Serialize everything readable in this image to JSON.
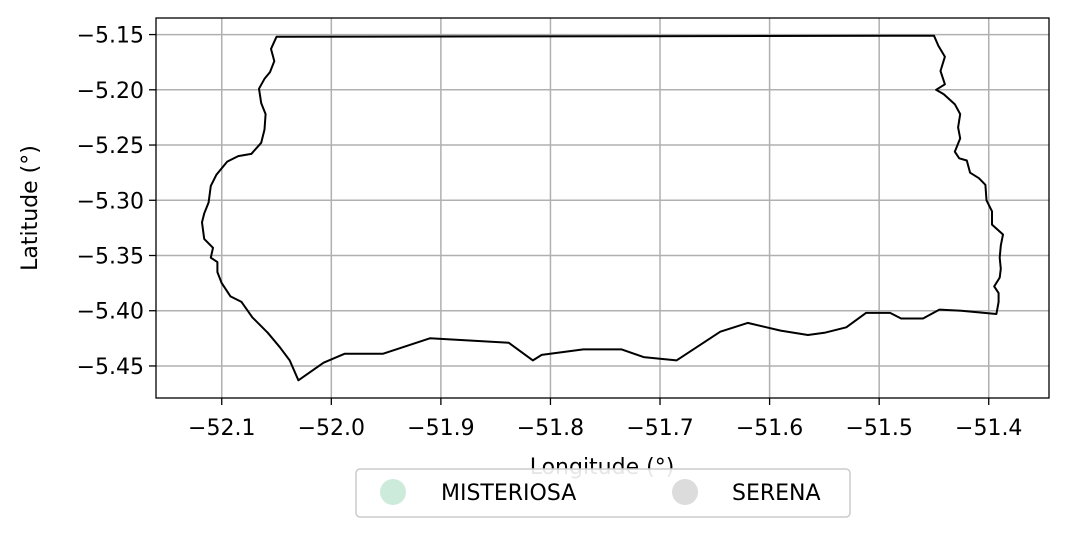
{
  "chart_data": {
    "type": "map",
    "xlabel": "Longitude (°)",
    "ylabel": "Latitude (°)",
    "xlim": [
      -52.16,
      -51.345
    ],
    "ylim": [
      -5.479,
      -5.135
    ],
    "grid": true,
    "x_ticks": [
      -52.1,
      -52.0,
      -51.9,
      -51.8,
      -51.7,
      -51.6,
      -51.5,
      -51.4
    ],
    "y_ticks": [
      -5.45,
      -5.4,
      -5.35,
      -5.3,
      -5.25,
      -5.2,
      -5.15
    ],
    "x_tick_labels": [
      "−52.1",
      "−52.0",
      "−51.9",
      "−51.8",
      "−51.7",
      "−51.6",
      "−51.5",
      "−51.4"
    ],
    "y_tick_labels": [
      "−5.45",
      "−5.40",
      "−5.35",
      "−5.30",
      "−5.25",
      "−5.20",
      "−5.15"
    ],
    "legend": {
      "placement": "bottom-center",
      "entries": [
        {
          "label": "MISTERIOSA",
          "color": "#cdebdb"
        },
        {
          "label": "SERENA",
          "color": "#dcdcdc"
        }
      ]
    },
    "boundary": [
      [
        -52.05,
        -5.152
      ],
      [
        -51.45,
        -5.151
      ],
      [
        -51.446,
        -5.16
      ],
      [
        -51.44,
        -5.17
      ],
      [
        -51.444,
        -5.183
      ],
      [
        -51.44,
        -5.195
      ],
      [
        -51.448,
        -5.2
      ],
      [
        -51.441,
        -5.204
      ],
      [
        -51.431,
        -5.213
      ],
      [
        -51.426,
        -5.222
      ],
      [
        -51.428,
        -5.234
      ],
      [
        -51.426,
        -5.244
      ],
      [
        -51.431,
        -5.256
      ],
      [
        -51.427,
        -5.262
      ],
      [
        -51.42,
        -5.264
      ],
      [
        -51.417,
        -5.275
      ],
      [
        -51.409,
        -5.28
      ],
      [
        -51.403,
        -5.286
      ],
      [
        -51.402,
        -5.3
      ],
      [
        -51.397,
        -5.31
      ],
      [
        -51.397,
        -5.322
      ],
      [
        -51.387,
        -5.331
      ],
      [
        -51.389,
        -5.341
      ],
      [
        -51.39,
        -5.352
      ],
      [
        -51.389,
        -5.362
      ],
      [
        -51.39,
        -5.37
      ],
      [
        -51.395,
        -5.378
      ],
      [
        -51.391,
        -5.384
      ],
      [
        -51.391,
        -5.392
      ],
      [
        -51.393,
        -5.403
      ],
      [
        -51.425,
        -5.4
      ],
      [
        -51.445,
        -5.399
      ],
      [
        -51.46,
        -5.407
      ],
      [
        -51.48,
        -5.407
      ],
      [
        -51.49,
        -5.402
      ],
      [
        -51.512,
        -5.402
      ],
      [
        -51.53,
        -5.415
      ],
      [
        -51.55,
        -5.42
      ],
      [
        -51.565,
        -5.422
      ],
      [
        -51.59,
        -5.418
      ],
      [
        -51.62,
        -5.411
      ],
      [
        -51.645,
        -5.419
      ],
      [
        -51.685,
        -5.445
      ],
      [
        -51.715,
        -5.442
      ],
      [
        -51.735,
        -5.435
      ],
      [
        -51.77,
        -5.435
      ],
      [
        -51.808,
        -5.44
      ],
      [
        -51.816,
        -5.445
      ],
      [
        -51.838,
        -5.429
      ],
      [
        -51.872,
        -5.427
      ],
      [
        -51.91,
        -5.425
      ],
      [
        -51.953,
        -5.439
      ],
      [
        -51.988,
        -5.439
      ],
      [
        -52.007,
        -5.447
      ],
      [
        -52.03,
        -5.463
      ],
      [
        -52.038,
        -5.445
      ],
      [
        -52.047,
        -5.433
      ],
      [
        -52.058,
        -5.42
      ],
      [
        -52.072,
        -5.406
      ],
      [
        -52.082,
        -5.392
      ],
      [
        -52.092,
        -5.387
      ],
      [
        -52.1,
        -5.375
      ],
      [
        -52.104,
        -5.365
      ],
      [
        -52.104,
        -5.356
      ],
      [
        -52.11,
        -5.352
      ],
      [
        -52.108,
        -5.343
      ],
      [
        -52.116,
        -5.335
      ],
      [
        -52.118,
        -5.32
      ],
      [
        -52.116,
        -5.312
      ],
      [
        -52.112,
        -5.302
      ],
      [
        -52.11,
        -5.287
      ],
      [
        -52.105,
        -5.277
      ],
      [
        -52.095,
        -5.265
      ],
      [
        -52.085,
        -5.26
      ],
      [
        -52.073,
        -5.258
      ],
      [
        -52.064,
        -5.248
      ],
      [
        -52.061,
        -5.236
      ],
      [
        -52.06,
        -5.222
      ],
      [
        -52.064,
        -5.212
      ],
      [
        -52.066,
        -5.199
      ],
      [
        -52.061,
        -5.19
      ],
      [
        -52.056,
        -5.184
      ],
      [
        -52.052,
        -5.174
      ],
      [
        -52.055,
        -5.163
      ],
      [
        -52.05,
        -5.152
      ]
    ]
  }
}
